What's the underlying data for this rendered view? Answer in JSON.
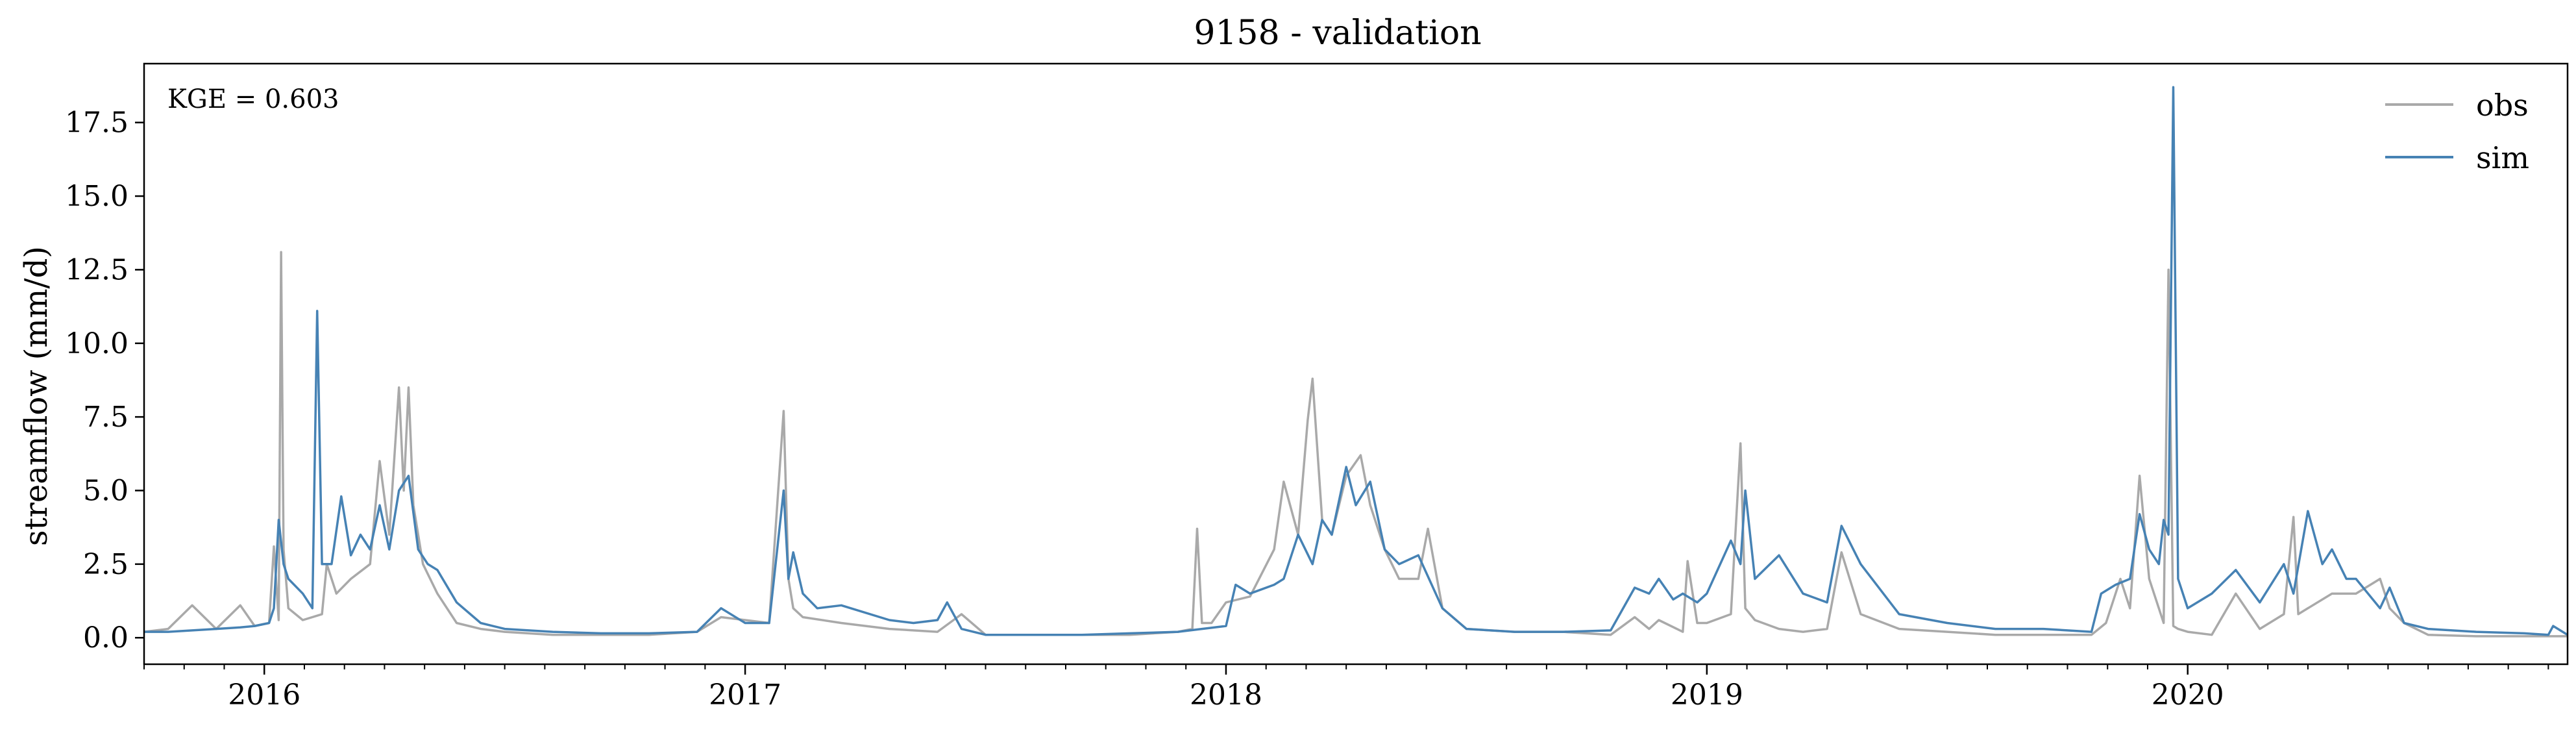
{
  "chart_data": {
    "type": "line",
    "title": "9158 - validation",
    "xlabel": "",
    "ylabel": "streamflow (mm/d)",
    "annotation": "KGE = 0.603",
    "xlim": [
      2015.75,
      2020.79
    ],
    "ylim": [
      -0.9,
      19.5
    ],
    "x_ticks": [
      2016,
      2017,
      2018,
      2019,
      2020
    ],
    "x_tick_labels": [
      "2016",
      "2017",
      "2018",
      "2019",
      "2020"
    ],
    "y_ticks": [
      0.0,
      2.5,
      5.0,
      7.5,
      10.0,
      12.5,
      15.0,
      17.5
    ],
    "y_tick_labels": [
      "0.0",
      "2.5",
      "5.0",
      "7.5",
      "10.0",
      "12.5",
      "15.0",
      "17.5"
    ],
    "legend": {
      "position": "top-right",
      "entries": [
        "obs",
        "sim"
      ]
    },
    "series": [
      {
        "name": "obs",
        "color": "#a9a9a9",
        "x": [
          2015.75,
          2015.8,
          2015.85,
          2015.9,
          2015.95,
          2015.98,
          2016.01,
          2016.02,
          2016.03,
          2016.035,
          2016.04,
          2016.05,
          2016.08,
          2016.12,
          2016.13,
          2016.15,
          2016.18,
          2016.22,
          2016.24,
          2016.26,
          2016.28,
          2016.29,
          2016.3,
          2016.31,
          2016.33,
          2016.36,
          2016.4,
          2016.45,
          2016.5,
          2016.6,
          2016.7,
          2016.8,
          2016.9,
          2016.95,
          2017.0,
          2017.05,
          2017.08,
          2017.09,
          2017.1,
          2017.12,
          2017.2,
          2017.3,
          2017.4,
          2017.45,
          2017.5,
          2017.6,
          2017.7,
          2017.8,
          2017.9,
          2017.93,
          2017.94,
          2017.95,
          2017.97,
          2018.0,
          2018.05,
          2018.1,
          2018.12,
          2018.15,
          2018.17,
          2018.18,
          2018.2,
          2018.22,
          2018.25,
          2018.28,
          2018.3,
          2018.33,
          2018.36,
          2018.4,
          2018.42,
          2018.45,
          2018.5,
          2018.6,
          2018.7,
          2018.8,
          2018.85,
          2018.88,
          2018.9,
          2018.95,
          2018.96,
          2018.98,
          2019.0,
          2019.05,
          2019.07,
          2019.08,
          2019.1,
          2019.15,
          2019.2,
          2019.25,
          2019.28,
          2019.32,
          2019.4,
          2019.5,
          2019.6,
          2019.7,
          2019.8,
          2019.83,
          2019.86,
          2019.88,
          2019.9,
          2019.92,
          2019.95,
          2019.96,
          2019.97,
          2019.98,
          2020.0,
          2020.05,
          2020.1,
          2020.15,
          2020.2,
          2020.22,
          2020.23,
          2020.25,
          2020.3,
          2020.35,
          2020.4,
          2020.42,
          2020.45,
          2020.5,
          2020.6,
          2020.7,
          2020.79
        ],
        "y": [
          0.2,
          0.3,
          1.1,
          0.3,
          1.1,
          0.4,
          0.5,
          3.1,
          0.6,
          13.1,
          3.0,
          1.0,
          0.6,
          0.8,
          2.5,
          1.5,
          2.0,
          2.5,
          6.0,
          3.5,
          8.5,
          5.0,
          8.5,
          4.5,
          2.5,
          1.5,
          0.5,
          0.3,
          0.2,
          0.1,
          0.1,
          0.1,
          0.2,
          0.7,
          0.6,
          0.5,
          7.7,
          2.0,
          1.0,
          0.7,
          0.5,
          0.3,
          0.2,
          0.8,
          0.1,
          0.1,
          0.1,
          0.1,
          0.2,
          0.3,
          3.7,
          0.5,
          0.5,
          1.2,
          1.4,
          3.0,
          5.3,
          3.5,
          7.4,
          8.8,
          4.0,
          3.5,
          5.5,
          6.2,
          4.5,
          3.0,
          2.0,
          2.0,
          3.7,
          1.0,
          0.3,
          0.2,
          0.2,
          0.1,
          0.7,
          0.3,
          0.6,
          0.2,
          2.6,
          0.5,
          0.5,
          0.8,
          6.6,
          1.0,
          0.6,
          0.3,
          0.2,
          0.3,
          2.9,
          0.8,
          0.3,
          0.2,
          0.1,
          0.1,
          0.1,
          0.5,
          2.0,
          1.0,
          5.5,
          2.0,
          0.5,
          12.5,
          0.4,
          0.3,
          0.2,
          0.1,
          1.5,
          0.3,
          0.8,
          4.1,
          0.8,
          1.0,
          1.5,
          1.5,
          2.0,
          1.0,
          0.5,
          0.1,
          0.05,
          0.05,
          0.05
        ]
      },
      {
        "name": "sim",
        "color": "#4682b4",
        "x": [
          2015.75,
          2015.8,
          2015.85,
          2015.9,
          2015.95,
          2015.98,
          2016.01,
          2016.02,
          2016.03,
          2016.04,
          2016.05,
          2016.08,
          2016.1,
          2016.11,
          2016.12,
          2016.14,
          2016.16,
          2016.18,
          2016.2,
          2016.22,
          2016.24,
          2016.26,
          2016.28,
          2016.3,
          2016.32,
          2016.34,
          2016.36,
          2016.4,
          2016.45,
          2016.5,
          2016.6,
          2016.7,
          2016.8,
          2016.9,
          2016.95,
          2017.0,
          2017.05,
          2017.08,
          2017.09,
          2017.1,
          2017.12,
          2017.15,
          2017.2,
          2017.3,
          2017.35,
          2017.4,
          2017.42,
          2017.45,
          2017.5,
          2017.6,
          2017.7,
          2017.8,
          2017.9,
          2017.95,
          2018.0,
          2018.02,
          2018.05,
          2018.1,
          2018.12,
          2018.15,
          2018.18,
          2018.2,
          2018.22,
          2018.25,
          2018.27,
          2018.3,
          2018.33,
          2018.36,
          2018.4,
          2018.45,
          2018.5,
          2018.6,
          2018.7,
          2018.8,
          2018.85,
          2018.88,
          2018.9,
          2018.93,
          2018.95,
          2018.98,
          2019.0,
          2019.05,
          2019.07,
          2019.08,
          2019.1,
          2019.15,
          2019.2,
          2019.25,
          2019.28,
          2019.32,
          2019.4,
          2019.5,
          2019.6,
          2019.7,
          2019.8,
          2019.82,
          2019.85,
          2019.88,
          2019.9,
          2019.92,
          2019.94,
          2019.95,
          2019.96,
          2019.97,
          2019.98,
          2020.0,
          2020.05,
          2020.1,
          2020.15,
          2020.2,
          2020.22,
          2020.25,
          2020.28,
          2020.3,
          2020.33,
          2020.35,
          2020.4,
          2020.42,
          2020.45,
          2020.5,
          2020.6,
          2020.7,
          2020.75,
          2020.76,
          2020.79
        ],
        "y": [
          0.2,
          0.2,
          0.25,
          0.3,
          0.35,
          0.4,
          0.5,
          1.0,
          4.0,
          2.5,
          2.0,
          1.5,
          1.0,
          11.1,
          2.5,
          2.5,
          4.8,
          2.8,
          3.5,
          3.0,
          4.5,
          3.0,
          5.0,
          5.5,
          3.0,
          2.5,
          2.3,
          1.2,
          0.5,
          0.3,
          0.2,
          0.15,
          0.15,
          0.2,
          1.0,
          0.5,
          0.5,
          5.0,
          2.0,
          2.9,
          1.5,
          1.0,
          1.1,
          0.6,
          0.5,
          0.6,
          1.2,
          0.3,
          0.1,
          0.1,
          0.1,
          0.15,
          0.2,
          0.3,
          0.4,
          1.8,
          1.5,
          1.8,
          2.0,
          3.5,
          2.5,
          4.0,
          3.5,
          5.8,
          4.5,
          5.3,
          3.0,
          2.5,
          2.8,
          1.0,
          0.3,
          0.2,
          0.2,
          0.25,
          1.7,
          1.5,
          2.0,
          1.3,
          1.5,
          1.2,
          1.5,
          3.3,
          2.5,
          5.0,
          2.0,
          2.8,
          1.5,
          1.2,
          3.8,
          2.5,
          0.8,
          0.5,
          0.3,
          0.3,
          0.2,
          1.5,
          1.8,
          2.0,
          4.2,
          3.0,
          2.5,
          4.0,
          3.5,
          18.7,
          2.0,
          1.0,
          1.5,
          2.3,
          1.2,
          2.5,
          1.5,
          4.3,
          2.5,
          3.0,
          2.0,
          2.0,
          1.0,
          1.7,
          0.5,
          0.3,
          0.2,
          0.15,
          0.1,
          0.4,
          0.1
        ]
      }
    ]
  }
}
